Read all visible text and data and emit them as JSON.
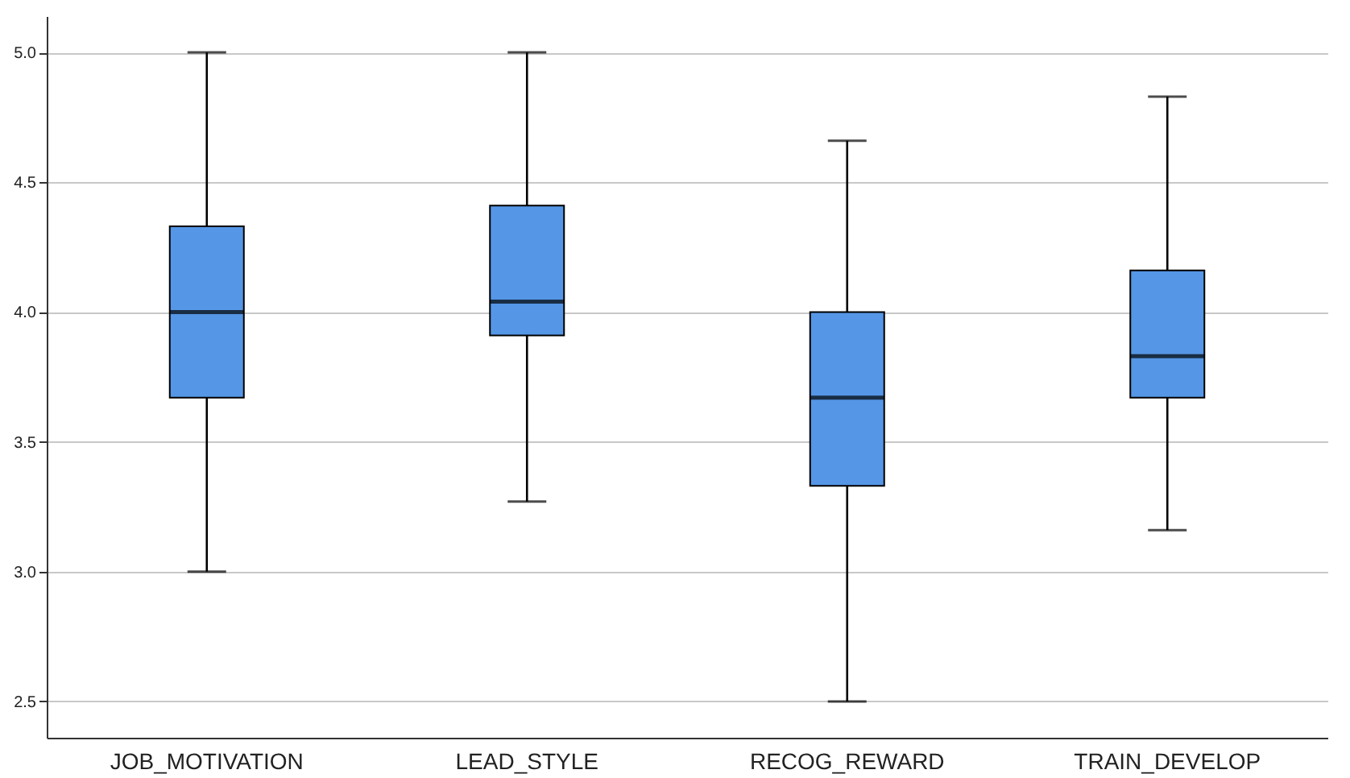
{
  "chart_data": {
    "type": "box",
    "categories": [
      "JOB_MOTIVATION",
      "LEAD_STYLE",
      "RECOG_REWARD",
      "TRAIN_DEVELOP"
    ],
    "boxes": [
      {
        "low": 3.0,
        "q1": 3.67,
        "median": 4.0,
        "q3": 4.33,
        "high": 5.0
      },
      {
        "low": 3.27,
        "q1": 3.91,
        "median": 4.04,
        "q3": 4.41,
        "high": 5.0
      },
      {
        "low": 2.5,
        "q1": 3.33,
        "median": 3.67,
        "q3": 4.0,
        "high": 4.66
      },
      {
        "low": 3.16,
        "q1": 3.67,
        "median": 3.83,
        "q3": 4.16,
        "high": 4.83
      }
    ],
    "color": "#5596e6",
    "ylim": [
      2.36,
      5.14
    ],
    "yticks": [
      {
        "value": 2.5,
        "label": "2.5"
      },
      {
        "value": 3,
        "label": "3.0"
      },
      {
        "value": 3.5,
        "label": "3.5"
      },
      {
        "value": 4,
        "label": "4.0"
      },
      {
        "value": 4.5,
        "label": "4.5"
      },
      {
        "value": 5,
        "label": "5.0"
      }
    ],
    "grid": "y"
  }
}
